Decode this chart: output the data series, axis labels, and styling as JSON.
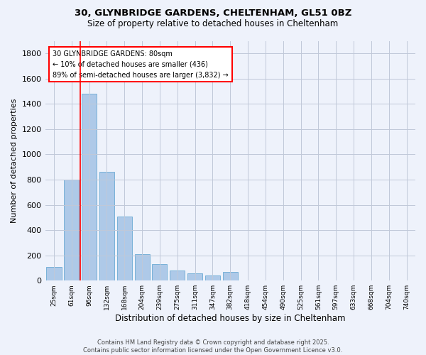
{
  "title_line1": "30, GLYNBRIDGE GARDENS, CHELTENHAM, GL51 0BZ",
  "title_line2": "Size of property relative to detached houses in Cheltenham",
  "xlabel": "Distribution of detached houses by size in Cheltenham",
  "ylabel": "Number of detached properties",
  "categories": [
    "25sqm",
    "61sqm",
    "96sqm",
    "132sqm",
    "168sqm",
    "204sqm",
    "239sqm",
    "275sqm",
    "311sqm",
    "347sqm",
    "382sqm",
    "418sqm",
    "454sqm",
    "490sqm",
    "525sqm",
    "561sqm",
    "597sqm",
    "633sqm",
    "668sqm",
    "704sqm",
    "740sqm"
  ],
  "values": [
    110,
    800,
    1480,
    860,
    510,
    210,
    130,
    80,
    55,
    40,
    70,
    0,
    0,
    0,
    0,
    0,
    0,
    0,
    0,
    0,
    0
  ],
  "bar_color": "#aec9e8",
  "bar_edge_color": "#6aaad4",
  "vline_x": 1.5,
  "vline_color": "red",
  "annotation_text": "30 GLYNBRIDGE GARDENS: 80sqm\n← 10% of detached houses are smaller (436)\n89% of semi-detached houses are larger (3,832) →",
  "annotation_box_color": "white",
  "annotation_box_edge_color": "red",
  "ylim": [
    0,
    1900
  ],
  "yticks": [
    0,
    200,
    400,
    600,
    800,
    1000,
    1200,
    1400,
    1600,
    1800
  ],
  "footer_line1": "Contains HM Land Registry data © Crown copyright and database right 2025.",
  "footer_line2": "Contains public sector information licensed under the Open Government Licence v3.0.",
  "background_color": "#eef2fb",
  "plot_bg_color": "#eef2fb",
  "grid_color": "#c0c8d8"
}
